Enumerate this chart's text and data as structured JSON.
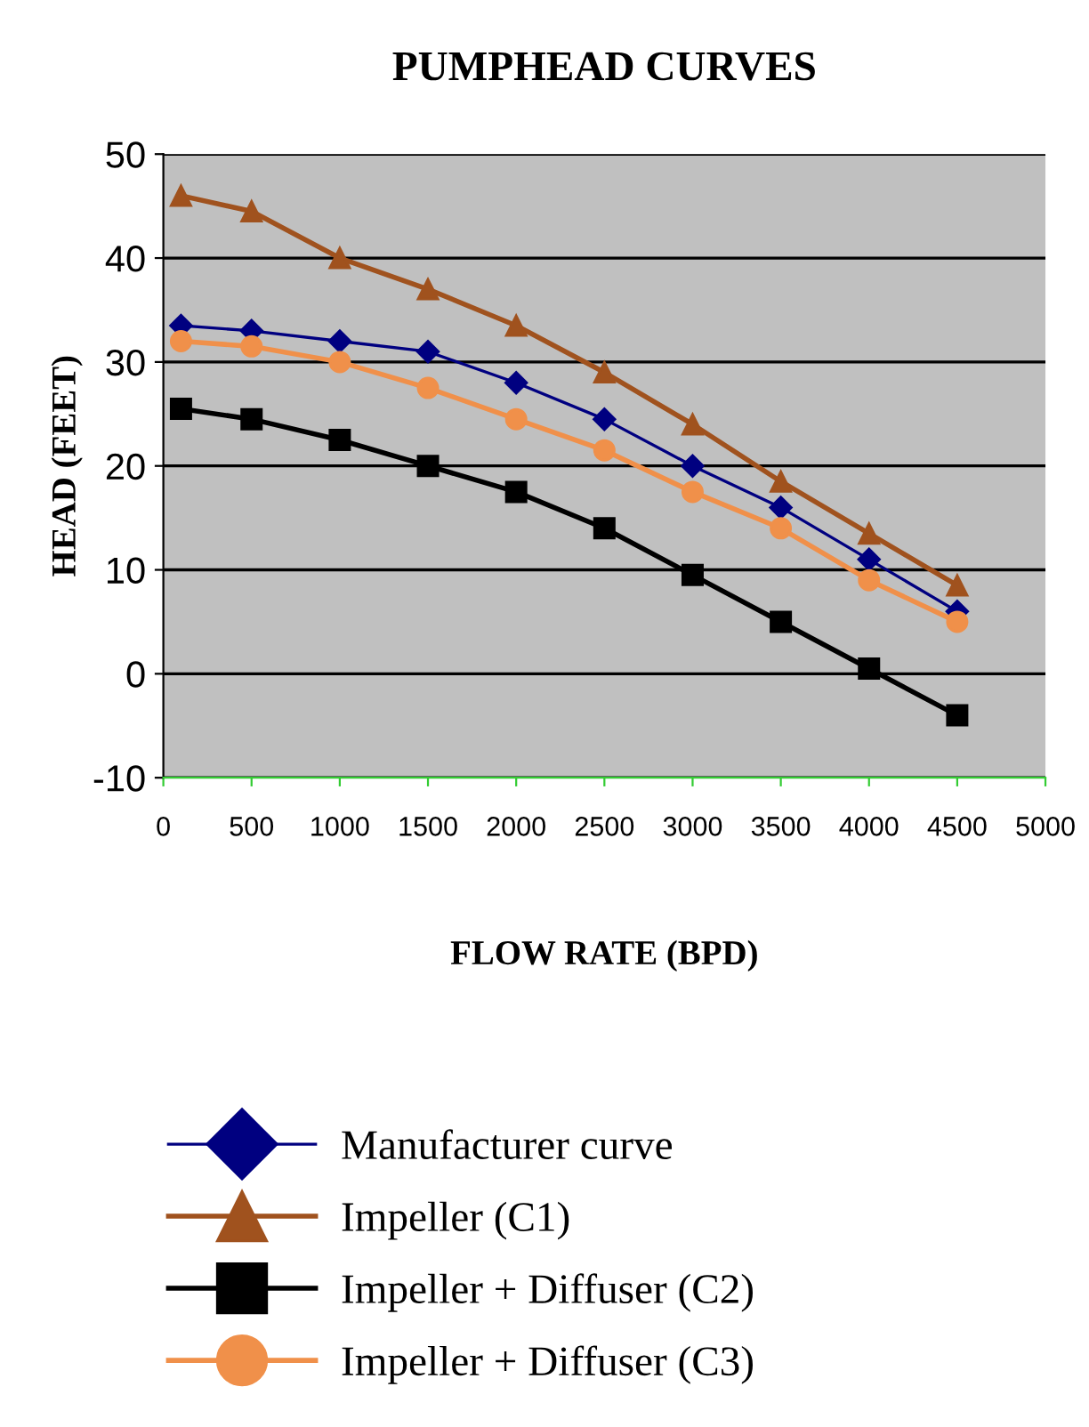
{
  "chart_data": {
    "type": "line",
    "title": "PUMPHEAD CURVES",
    "xlabel": "FLOW RATE (BPD)",
    "ylabel": "HEAD (FEET)",
    "x": [
      100,
      500,
      1000,
      1500,
      2000,
      2500,
      3000,
      3500,
      4000,
      4500
    ],
    "series": [
      {
        "name": "Manufacturer curve",
        "color": "#000080",
        "marker": "diamond",
        "values": [
          33.5,
          33,
          32,
          31,
          28,
          24.5,
          20,
          16,
          11,
          6
        ]
      },
      {
        "name": "Impeller (C1)",
        "color": "#a0521e",
        "marker": "triangle",
        "values": [
          46,
          44.5,
          40,
          37,
          33.5,
          29,
          24,
          18.5,
          13.5,
          8.5
        ]
      },
      {
        "name": "Impeller + Diffuser (C2)",
        "color": "#000000",
        "marker": "square",
        "values": [
          25.5,
          24.5,
          22.5,
          20,
          17.5,
          14,
          9.5,
          5,
          0.5,
          -4
        ]
      },
      {
        "name": "Impeller + Diffuser (C3)",
        "color": "#f0904a",
        "marker": "circle",
        "values": [
          32,
          31.5,
          30,
          27.5,
          24.5,
          21.5,
          17.5,
          14,
          9,
          5
        ]
      }
    ],
    "xlim": [
      0,
      5000
    ],
    "xticks": [
      0,
      500,
      1000,
      1500,
      2000,
      2500,
      3000,
      3500,
      4000,
      4500,
      5000
    ],
    "ylim": [
      -10,
      50
    ],
    "yticks": [
      -10,
      0,
      10,
      20,
      30,
      40,
      50
    ],
    "grid": "y",
    "legend": "bottom",
    "line_style": "solid"
  }
}
